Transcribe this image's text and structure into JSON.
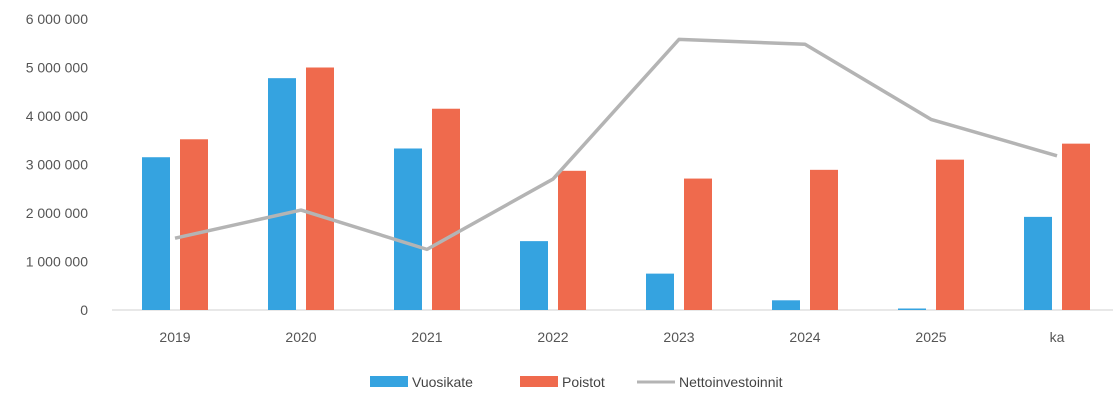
{
  "chart_data": {
    "type": "bar",
    "categories": [
      "2019",
      "2020",
      "2021",
      "2022",
      "2023",
      "2024",
      "2025",
      "ka"
    ],
    "series": [
      {
        "name": "Vuosikate",
        "type": "bar",
        "color": "#35a3e0",
        "values": [
          3150000,
          4780000,
          3330000,
          1420000,
          750000,
          200000,
          20000,
          1920000
        ]
      },
      {
        "name": "Poistot",
        "type": "bar",
        "color": "#ef6a4d",
        "values": [
          3520000,
          5000000,
          4150000,
          2870000,
          2710000,
          2890000,
          3100000,
          3430000
        ]
      },
      {
        "name": "Nettoinvestoinnit",
        "type": "line",
        "color": "#b4b4b4",
        "values": [
          1480000,
          2060000,
          1250000,
          2700000,
          5580000,
          5480000,
          3930000,
          3180000
        ]
      }
    ],
    "yticks": [
      "6 000 000",
      "5 000 000",
      "4 000 000",
      "3 000 000",
      "2 000 000",
      "1 000 000",
      "0"
    ],
    "ylim": [
      0,
      6000000
    ],
    "grid": false,
    "legend": "bottom"
  }
}
